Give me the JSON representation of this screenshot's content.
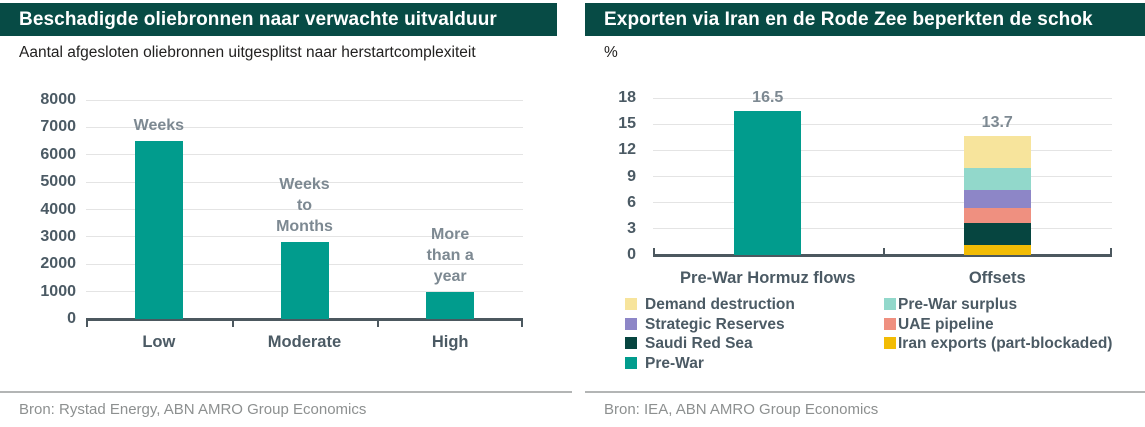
{
  "colors": {
    "header_bg": "#074B45",
    "header_text": "#FFFFFF",
    "axis": "#4C585F",
    "grid": "#E4E4E4",
    "tick_text": "#4B5A64",
    "category_text": "#4B5A64",
    "annotation_text": "#7D8992",
    "subtitle_text": "#222120",
    "source_text": "#8D9090",
    "divider": "#B3B5B5"
  },
  "chart_data": [
    {
      "type": "bar",
      "title": "Beschadigde oliebronnen naar verwachte uitvalduur",
      "subtitle": "Aantal afgesloten oliebronnen uitgesplitst naar herstartcomplexiteit",
      "source": "Bron: Rystad Energy, ABN AMRO Group Economics",
      "categories": [
        "Low",
        "Moderate",
        "High"
      ],
      "values": [
        6500,
        2800,
        1000
      ],
      "bar_color": "#019C8D",
      "bar_annotations": [
        [
          "Weeks"
        ],
        [
          "Weeks",
          "to",
          "Months"
        ],
        [
          "More",
          "than a",
          "year"
        ]
      ],
      "ylim": [
        0,
        8000
      ],
      "yticks": [
        0,
        1000,
        2000,
        3000,
        4000,
        5000,
        6000,
        7000,
        8000
      ],
      "grid": true,
      "legend": null
    },
    {
      "type": "stacked-bar",
      "title": "Exporten via Iran en de Rode Zee beperkten de schok",
      "subtitle": "%",
      "ylabel": "%",
      "source": "Bron: IEA, ABN AMRO Group Economics",
      "categories": [
        "Pre-War Hormuz flows",
        "Offsets"
      ],
      "series": [
        {
          "name": "Pre-War",
          "color": "#019C8D",
          "values": [
            16.5,
            0
          ]
        },
        {
          "name": "Iran exports (part-blockaded)",
          "color": "#F2BC05",
          "values": [
            0,
            1.2
          ]
        },
        {
          "name": "Saudi Red Sea",
          "color": "#064540",
          "values": [
            0,
            2.5
          ]
        },
        {
          "name": "UAE pipeline",
          "color": "#EF9080",
          "values": [
            0,
            1.7
          ]
        },
        {
          "name": "Strategic Reserves",
          "color": "#8D86C7",
          "values": [
            0,
            2.0
          ]
        },
        {
          "name": "Pre-War surplus",
          "color": "#92D8CB",
          "values": [
            0,
            2.6
          ]
        },
        {
          "name": "Demand destruction",
          "color": "#F7E49C",
          "values": [
            0,
            3.7
          ]
        }
      ],
      "totals": [
        16.5,
        13.7
      ],
      "data_labels": [
        "16.5",
        "13.7"
      ],
      "ylim": [
        0,
        18
      ],
      "yticks": [
        0,
        3,
        6,
        9,
        12,
        15,
        18
      ],
      "grid": true,
      "legend": {
        "columns": [
          [
            "Demand destruction",
            "Strategic Reserves",
            "Saudi Red Sea",
            "Pre-War"
          ],
          [
            "Pre-War surplus",
            "UAE pipeline",
            "Iran exports (part-blockaded)"
          ]
        ]
      }
    }
  ]
}
